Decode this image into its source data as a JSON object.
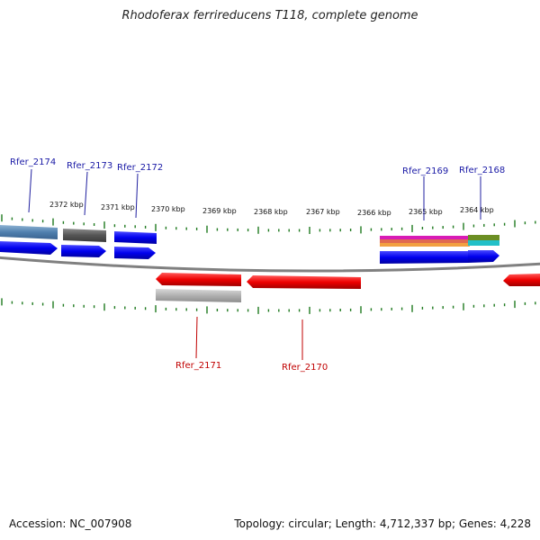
{
  "title": "Rhodoferax ferrireducens T118, complete genome",
  "accession": "Accession: NC_007908",
  "topology": "Topology: circular; Length: 4,712,337 bp; Genes: 4,228",
  "axis_labels": [
    "2372 kbp",
    "2371 kbp",
    "2370 kbp",
    "2369 kbp",
    "2368 kbp",
    "2367 kbp",
    "2366 kbp",
    "2365 kbp",
    "2364 kbp"
  ],
  "forward_gene_labels": [
    "Rfer_2174",
    "Rfer_2173",
    "Rfer_2172",
    "Rfer_2169",
    "Rfer_2168"
  ],
  "reverse_gene_labels": [
    "Rfer_2171",
    "Rfer_2170"
  ],
  "colors": {
    "forward": "#0000ee",
    "reverse": "#ee0000",
    "tick": "#1f7a1f",
    "backbone": "#808080",
    "label_forward": "#1a1aa6",
    "label_reverse": "#c00000"
  }
}
